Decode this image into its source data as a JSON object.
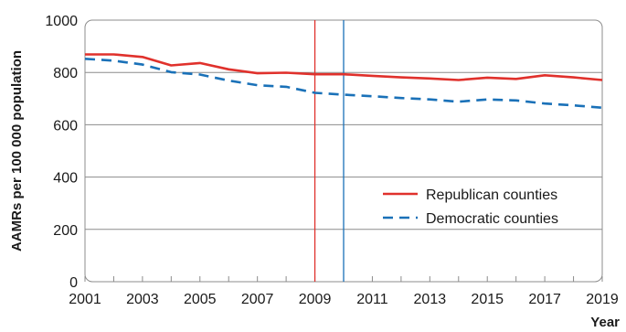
{
  "chart_data": {
    "type": "line",
    "xlabel": "Year",
    "ylabel": "AAMRs per 100 000 population",
    "xlim": [
      2001,
      2019
    ],
    "ylim": [
      0,
      1000
    ],
    "x_ticks": [
      2001,
      2003,
      2005,
      2007,
      2009,
      2011,
      2013,
      2015,
      2017,
      2019
    ],
    "y_ticks": [
      0,
      200,
      400,
      600,
      800,
      1000
    ],
    "grid": "horizontal",
    "legend_position": "right",
    "x": [
      2001,
      2002,
      2003,
      2004,
      2005,
      2006,
      2007,
      2008,
      2009,
      2010,
      2011,
      2012,
      2013,
      2014,
      2015,
      2016,
      2017,
      2018,
      2019
    ],
    "series": [
      {
        "name": "Republican counties",
        "color": "#e0312c",
        "dash": "solid",
        "values": [
          869,
          869,
          859,
          827,
          836,
          812,
          797,
          799,
          793,
          793,
          787,
          781,
          777,
          771,
          780,
          775,
          789,
          781,
          771
        ]
      },
      {
        "name": "Democratic counties",
        "color": "#1a71b8",
        "dash": "dashed",
        "values": [
          852,
          845,
          830,
          801,
          792,
          769,
          751,
          745,
          722,
          715,
          709,
          702,
          697,
          688,
          697,
          693,
          681,
          674,
          665
        ]
      }
    ],
    "reference_lines": [
      {
        "x": 2009,
        "color": "#e0312c"
      },
      {
        "x": 2010,
        "color": "#1a71b8"
      }
    ]
  }
}
